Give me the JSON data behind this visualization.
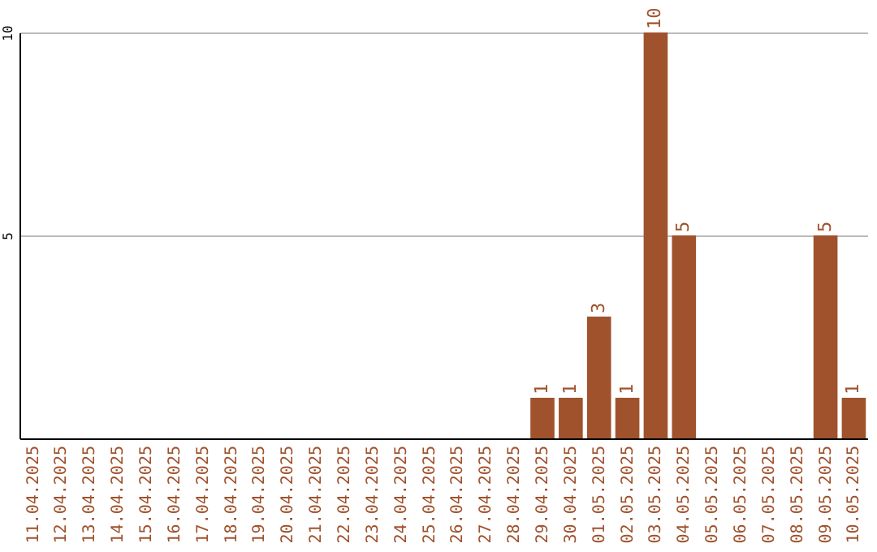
{
  "chart_data": {
    "type": "bar",
    "categories": [
      "11.04.2025",
      "12.04.2025",
      "13.04.2025",
      "14.04.2025",
      "15.04.2025",
      "16.04.2025",
      "17.04.2025",
      "18.04.2025",
      "19.04.2025",
      "20.04.2025",
      "21.04.2025",
      "22.04.2025",
      "23.04.2025",
      "24.04.2025",
      "25.04.2025",
      "26.04.2025",
      "27.04.2025",
      "28.04.2025",
      "29.04.2025",
      "30.04.2025",
      "01.05.2025",
      "02.05.2025",
      "03.05.2025",
      "04.05.2025",
      "05.05.2025",
      "06.05.2025",
      "07.05.2025",
      "08.05.2025",
      "09.05.2025",
      "10.05.2025"
    ],
    "values": [
      0,
      0,
      0,
      0,
      0,
      0,
      0,
      0,
      0,
      0,
      0,
      0,
      0,
      0,
      0,
      0,
      0,
      0,
      1,
      1,
      3,
      1,
      10,
      5,
      0,
      0,
      0,
      0,
      5,
      1
    ],
    "value_labels": [
      null,
      null,
      null,
      null,
      null,
      null,
      null,
      null,
      null,
      null,
      null,
      null,
      null,
      null,
      null,
      null,
      null,
      null,
      "1",
      "1",
      "3",
      "1",
      "10",
      "5",
      null,
      null,
      null,
      null,
      "5",
      "1"
    ],
    "color": "#a0522d",
    "ylim": [
      0,
      10
    ],
    "yticks": [
      5,
      10
    ],
    "grid": "y"
  }
}
